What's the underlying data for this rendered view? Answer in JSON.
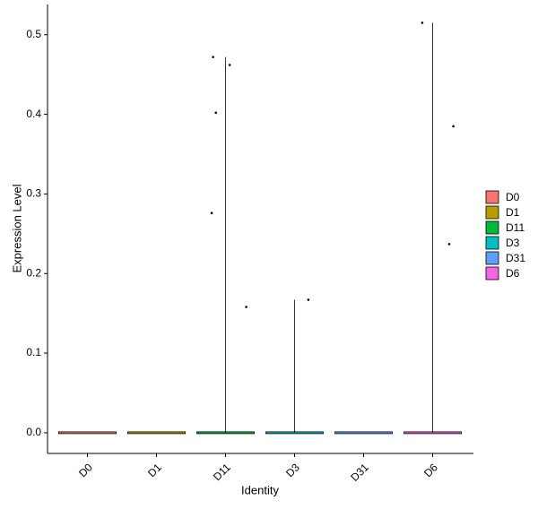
{
  "chart_data": {
    "type": "violin",
    "x_label": "Identity",
    "y_label": "Expression Level",
    "categories": [
      "D0",
      "D1",
      "D11",
      "D3",
      "D31",
      "D6"
    ],
    "series": [
      {
        "name": "D0",
        "color": "#F8766D",
        "values": []
      },
      {
        "name": "D1",
        "color": "#B79F00",
        "values": []
      },
      {
        "name": "D11",
        "color": "#00BA38",
        "values": [
          0.472,
          0.462,
          0.402,
          0.276,
          0.158
        ]
      },
      {
        "name": "D3",
        "color": "#00BFC4",
        "values": [
          0.167
        ]
      },
      {
        "name": "D31",
        "color": "#619CFF",
        "values": []
      },
      {
        "name": "D6",
        "color": "#F564E3",
        "values": [
          0.515,
          0.385,
          0.237
        ]
      }
    ],
    "ylim": [
      -0.026,
      0.538
    ],
    "yticks": [
      {
        "value": 0,
        "label": "0.0"
      },
      0.1,
      0.2,
      0.3,
      0.4,
      0.5
    ]
  }
}
